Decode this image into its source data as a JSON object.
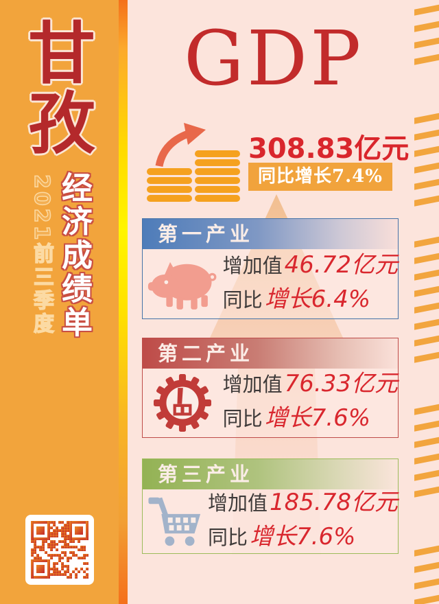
{
  "palette": {
    "sidebar_orange": "#F2A43C",
    "page_pink": "#FCE4DC",
    "brand_red": "#B4292B",
    "value_red": "#D9272E",
    "badge_orange": "#F1A33C",
    "coin_orange": "#F5A11F",
    "arrow_salmon": "#E8684A",
    "card1_header": "#4E7CB9",
    "card2_header": "#BE4B48",
    "card3_header": "#93B254"
  },
  "sidebar": {
    "region_name": "甘孜",
    "period": "2021前三季度",
    "report_title": "经济成绩单",
    "qr_icon": "qr-code"
  },
  "hero": {
    "title": "GDP",
    "value": "308.83亿元",
    "growth_badge": "同比增长7.4%",
    "icon": "coins-with-up-arrow"
  },
  "cards": [
    {
      "title": "第一产业",
      "icon": "pig",
      "label_value": "增加值",
      "value": "46.72亿元",
      "label_growth": "同比",
      "growth": "增长6.4%"
    },
    {
      "title": "第二产业",
      "icon": "factory-gear",
      "label_value": "增加值",
      "value": "76.33亿元",
      "label_growth": "同比",
      "growth": "增长7.6%"
    },
    {
      "title": "第三产业",
      "icon": "shopping-cart",
      "label_value": "增加值",
      "value": "185.78亿元",
      "label_growth": "同比",
      "growth": "增长7.6%"
    }
  ]
}
